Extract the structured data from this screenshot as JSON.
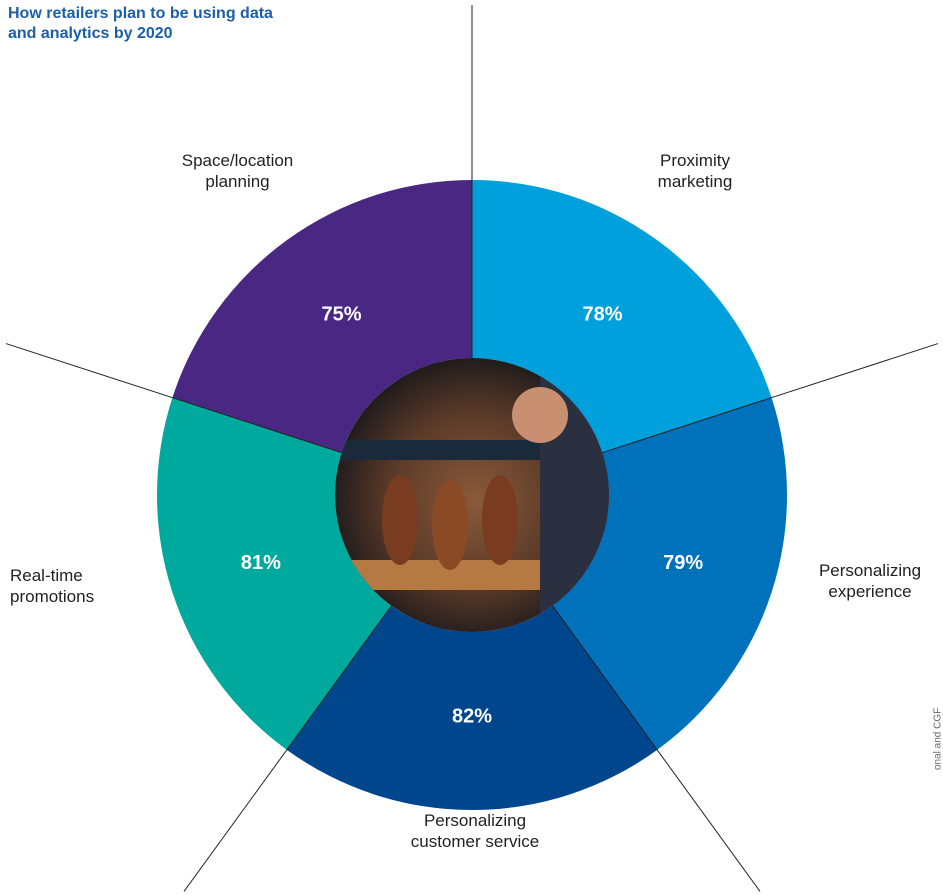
{
  "chart_data": {
    "type": "donut",
    "title": "How retailers plan to be using data and analytics by 2020",
    "categories": [
      "Proximity marketing",
      "Personalizing experience",
      "Personalizing customer service",
      "Real-time promotions",
      "Space/location planning"
    ],
    "values": [
      78,
      79,
      82,
      81,
      75
    ],
    "value_labels": [
      "78%",
      "79%",
      "82%",
      "81%",
      "75%"
    ],
    "colors": [
      "#00a0dc",
      "#0072bc",
      "#00468c",
      "#00a99d",
      "#4a2783"
    ],
    "source": "onal and CGF"
  }
}
